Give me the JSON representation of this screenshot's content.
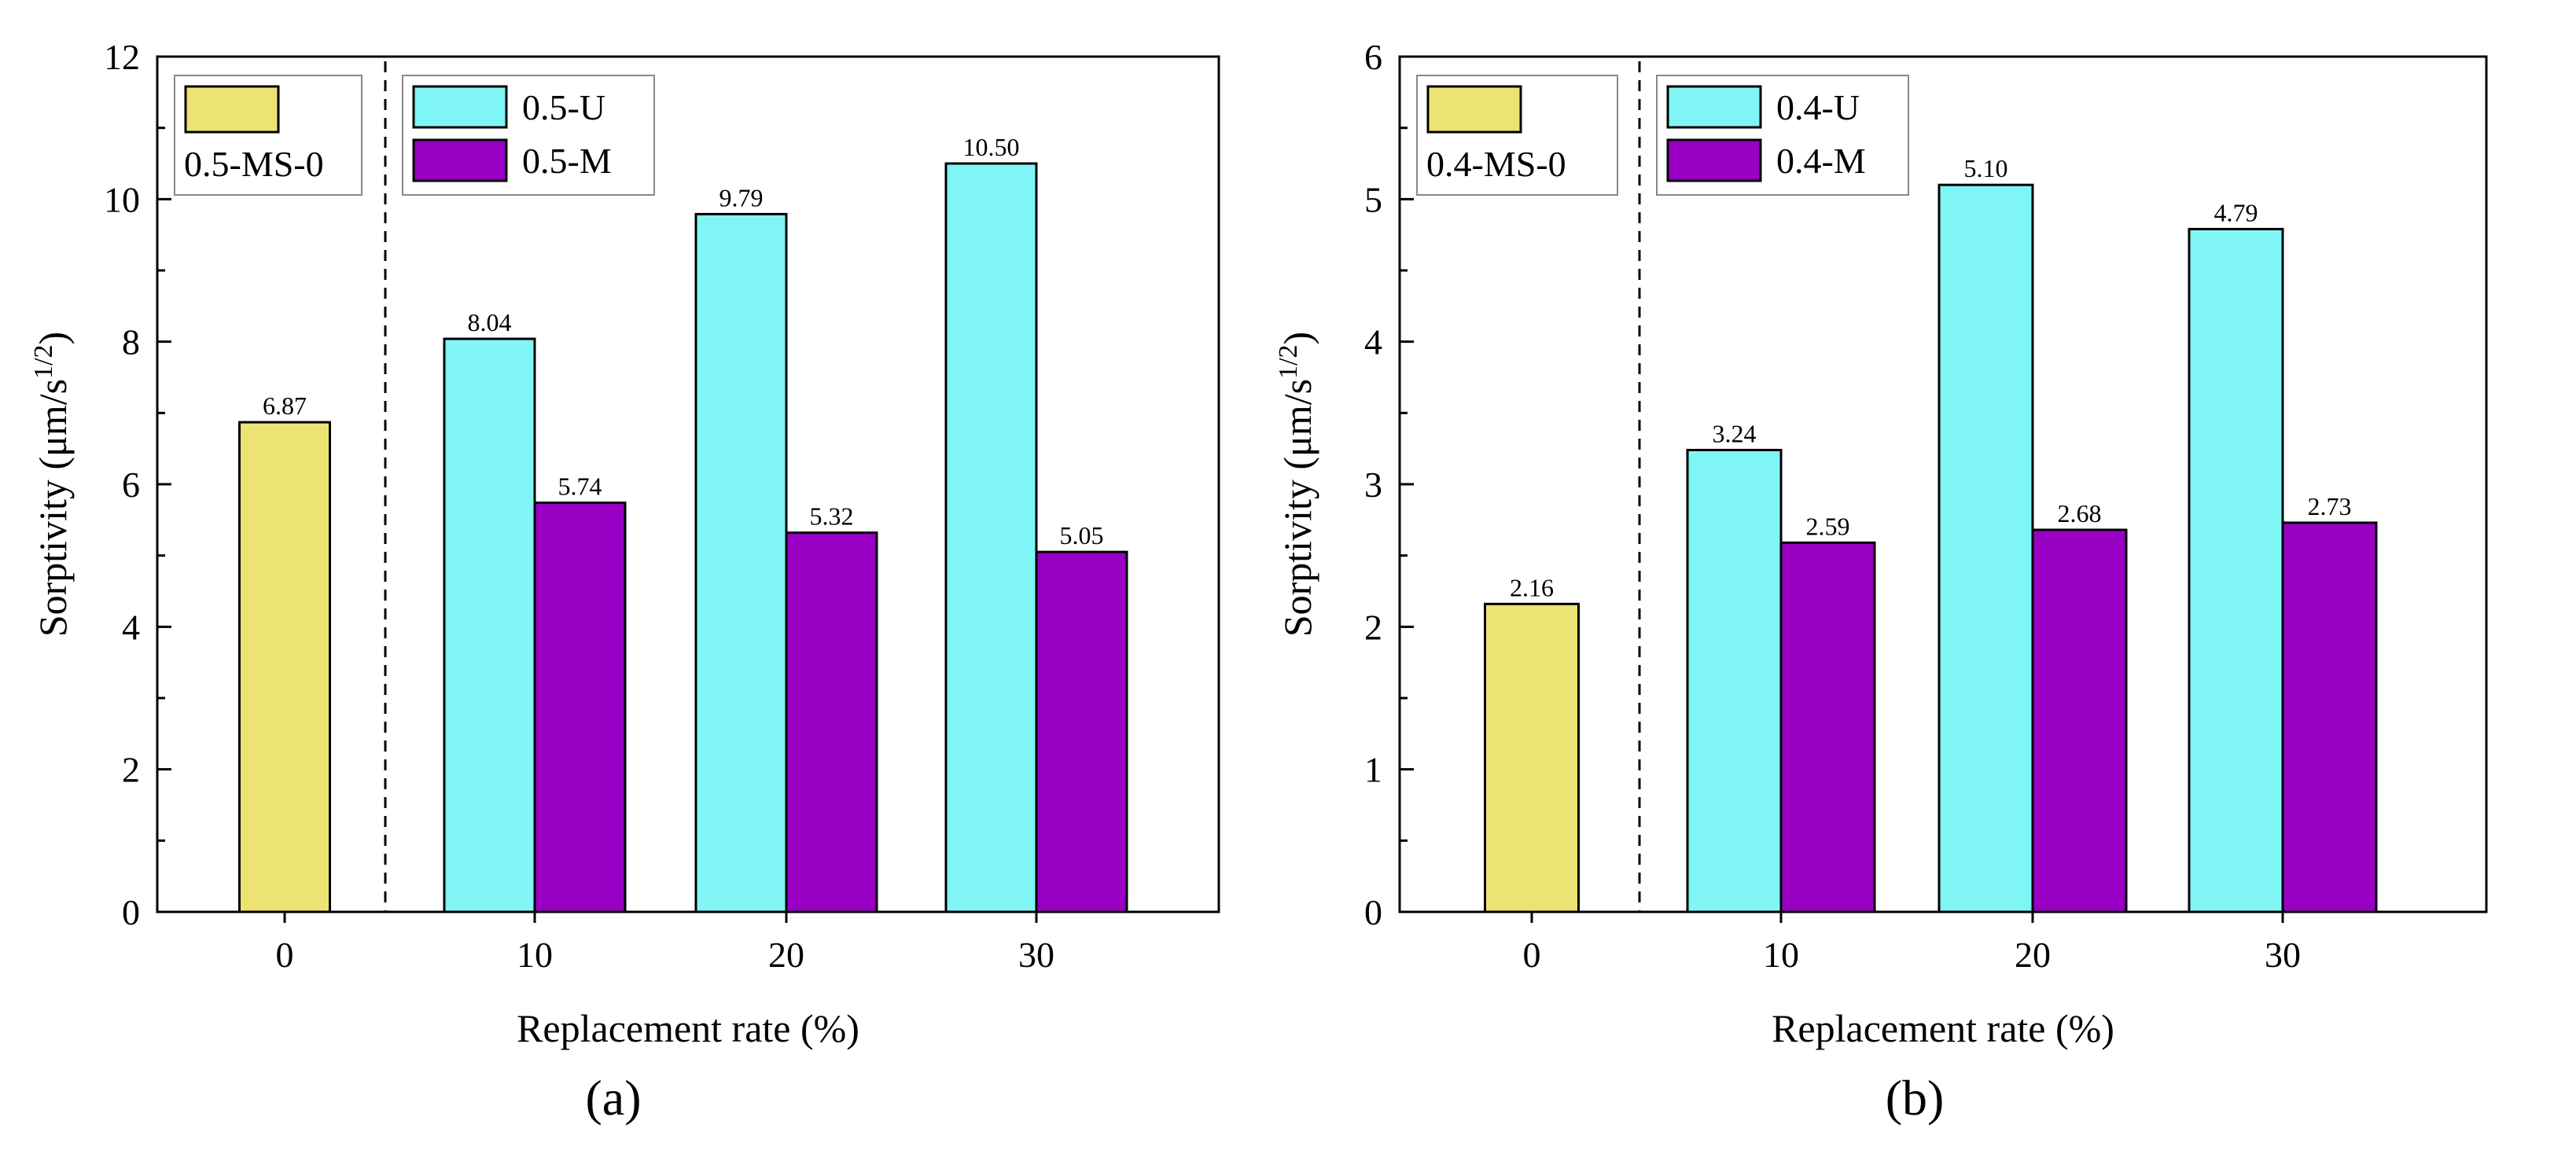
{
  "chart_data": [
    {
      "type": "bar",
      "panel_label": "(a)",
      "categories": [
        "0",
        "10",
        "20",
        "30"
      ],
      "series": [
        {
          "name": "0.5-MS-0",
          "color": "#ede372",
          "values": [
            6.87,
            null,
            null,
            null
          ]
        },
        {
          "name": "0.5-U",
          "color": "#7ff5f5",
          "values": [
            null,
            8.04,
            9.79,
            10.5
          ]
        },
        {
          "name": "0.5-M",
          "color": "#9900c4",
          "values": [
            null,
            5.74,
            5.32,
            5.05
          ]
        }
      ],
      "data_labels": {
        "0.5-MS-0": [
          "6.87"
        ],
        "0.5-U": [
          "8.04",
          "9.79",
          "10.50"
        ],
        "0.5-M": [
          "5.74",
          "5.32",
          "5.05"
        ]
      },
      "xlabel": "Replacement rate (%)",
      "ylabel": "Sorptivity (μm/s^1/2)",
      "ylabel_main": "Sorptivity (μm/s",
      "ylabel_sup": "1/2",
      "ylabel_close": ")",
      "ylim": [
        0,
        12
      ],
      "yticks": [
        "0",
        "2",
        "4",
        "6",
        "8",
        "10",
        "12"
      ],
      "legend": {
        "control": "0.5-MS-0",
        "u": "0.5-U",
        "m": "0.5-M"
      }
    },
    {
      "type": "bar",
      "panel_label": "(b)",
      "categories": [
        "0",
        "10",
        "20",
        "30"
      ],
      "series": [
        {
          "name": "0.4-MS-0",
          "color": "#ede372",
          "values": [
            2.16,
            null,
            null,
            null
          ]
        },
        {
          "name": "0.4-U",
          "color": "#7ff5f5",
          "values": [
            null,
            3.24,
            5.1,
            4.79
          ]
        },
        {
          "name": "0.4-M",
          "color": "#9900c4",
          "values": [
            null,
            2.59,
            2.68,
            2.73
          ]
        }
      ],
      "data_labels": {
        "0.4-MS-0": [
          "2.16"
        ],
        "0.4-U": [
          "3.24",
          "5.10",
          "4.79"
        ],
        "0.4-M": [
          "2.59",
          "2.68",
          "2.73"
        ]
      },
      "xlabel": "Replacement rate (%)",
      "ylabel": "Sorptivity (μm/s^1/2)",
      "ylabel_main": "Sorptivity (μm/s",
      "ylabel_sup": "1/2",
      "ylabel_close": ")",
      "ylim": [
        0,
        6
      ],
      "yticks": [
        "0",
        "1",
        "2",
        "3",
        "4",
        "5",
        "6"
      ],
      "legend": {
        "control": "0.4-MS-0",
        "u": "0.4-U",
        "m": "0.4-M"
      }
    }
  ]
}
